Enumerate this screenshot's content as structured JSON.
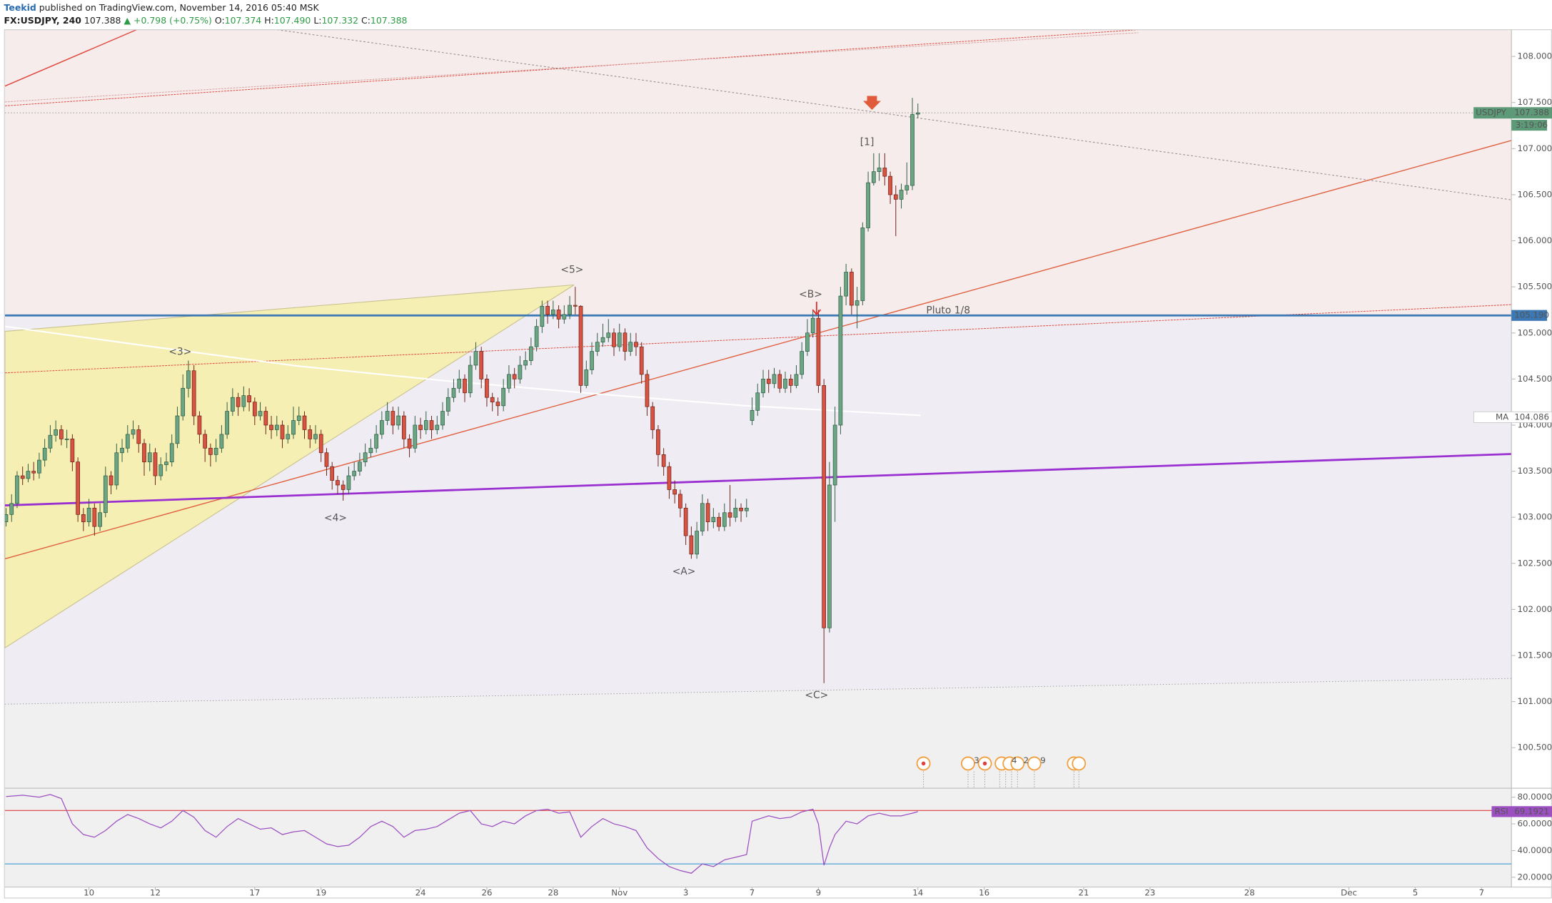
{
  "header": {
    "author": "Teekid",
    "published": "published on TradingView.com, November 14, 2016 05:40 MSK",
    "symbol": "FX:USDJPY, 240",
    "last": "107.388",
    "change": "▲ +0.798 (+0.75%)",
    "o_label": "O:",
    "open": "107.374",
    "h_label": "H:",
    "high": "107.490",
    "l_label": "L:",
    "low": "107.332",
    "c_label": "C:",
    "close": "107.388"
  },
  "chart_data": {
    "type": "candlestick",
    "up_color": "#6ba583",
    "down_color": "#d75442",
    "x": [
      0,
      1,
      2,
      3,
      4,
      5,
      6,
      7,
      8,
      9,
      10,
      11,
      12,
      13,
      14,
      15,
      16,
      17,
      18,
      19,
      20,
      21,
      22,
      23,
      24,
      25,
      26,
      27,
      28,
      29,
      30,
      31,
      32,
      33,
      34,
      35,
      36,
      37,
      38,
      39,
      40,
      41,
      42,
      43,
      44,
      45,
      46,
      47,
      48,
      49,
      50,
      51,
      52,
      53,
      54,
      55,
      56,
      57,
      58,
      59,
      60,
      61,
      62,
      63,
      64,
      65,
      66,
      67,
      68,
      69,
      70,
      71,
      72,
      73,
      74,
      75,
      76,
      77,
      78,
      79,
      80,
      81,
      82,
      83,
      84,
      85,
      86,
      87,
      88,
      89,
      90,
      91,
      92,
      93,
      94,
      95,
      96,
      97,
      98,
      99,
      100,
      101,
      102,
      103,
      104,
      105,
      106,
      107,
      108,
      109,
      110,
      111,
      112,
      113,
      114,
      115,
      116,
      117,
      118,
      119,
      120,
      121,
      122,
      123,
      124,
      125,
      126,
      127,
      128,
      129,
      130,
      131,
      132,
      133,
      134,
      135,
      136,
      137,
      138,
      139,
      140,
      141,
      142,
      143,
      144,
      145,
      146,
      147,
      148,
      149,
      150,
      151,
      152,
      153,
      154,
      155,
      156,
      157,
      158,
      159,
      160,
      161,
      162,
      163,
      164,
      165
    ],
    "open": [
      102.95,
      103.03,
      103.15,
      103.45,
      103.42,
      103.5,
      103.48,
      103.62,
      103.75,
      103.89,
      103.95,
      103.85,
      103.85,
      103.6,
      103.03,
      102.95,
      103.1,
      102.9,
      103.05,
      103.45,
      103.35,
      103.7,
      103.75,
      103.9,
      103.95,
      103.8,
      103.6,
      103.7,
      103.45,
      103.57,
      103.6,
      103.8,
      104.1,
      104.4,
      104.59,
      104.1,
      103.9,
      103.75,
      103.68,
      103.75,
      103.9,
      104.15,
      104.3,
      104.2,
      104.32,
      104.25,
      104.1,
      104.15,
      104.0,
      103.95,
      104.0,
      103.85,
      103.9,
      104.05,
      104.1,
      103.95,
      103.85,
      103.9,
      103.7,
      103.55,
      103.4,
      103.35,
      103.3,
      103.45,
      103.5,
      103.6,
      103.7,
      103.75,
      103.9,
      104.05,
      104.15,
      104.0,
      104.1,
      103.85,
      103.75,
      104.0,
      103.95,
      104.05,
      103.95,
      104.0,
      104.15,
      104.3,
      104.4,
      104.5,
      104.35,
      104.65,
      104.8,
      104.5,
      104.3,
      104.25,
      104.21,
      104.4,
      104.55,
      104.5,
      104.65,
      104.7,
      104.85,
      105.07,
      105.29,
      105.2,
      105.25,
      105.15,
      105.2,
      105.3,
      105.29,
      104.43,
      104.6,
      104.8,
      104.9,
      104.95,
      105.0,
      104.85,
      105.0,
      104.8,
      104.9,
      104.85,
      104.55,
      104.2,
      103.95,
      103.68,
      103.55,
      103.3,
      103.25,
      103.1,
      102.8,
      102.6,
      102.85,
      103.15,
      102.95,
      103.0,
      102.9,
      103.05,
      103.0,
      103.1,
      103.07,
      104.05,
      104.16,
      104.35,
      104.5,
      104.45,
      104.55,
      104.4,
      104.5,
      104.43,
      104.55,
      104.8,
      105.0,
      105.16,
      104.43,
      101.8,
      103.35,
      104.0,
      105.4,
      105.66,
      105.3,
      105.35,
      106.14,
      106.63,
      106.75,
      106.79,
      106.7,
      106.5,
      106.45,
      106.55,
      106.6,
      107.374
    ],
    "high": [
      103.1,
      103.25,
      103.5,
      103.55,
      103.58,
      103.6,
      103.7,
      103.85,
      104.0,
      104.05,
      104.0,
      103.95,
      103.9,
      103.65,
      103.1,
      103.2,
      103.15,
      103.15,
      103.55,
      103.5,
      103.8,
      103.85,
      104.0,
      104.05,
      104.0,
      103.85,
      103.8,
      103.75,
      103.65,
      103.7,
      103.9,
      104.2,
      104.55,
      104.7,
      104.65,
      104.15,
      103.95,
      103.8,
      103.85,
      104.0,
      104.25,
      104.4,
      104.35,
      104.42,
      104.4,
      104.3,
      104.25,
      104.2,
      104.1,
      104.1,
      104.05,
      104.0,
      104.2,
      104.2,
      104.15,
      104.0,
      104.0,
      103.95,
      103.75,
      103.6,
      103.45,
      103.4,
      103.55,
      103.6,
      103.7,
      103.8,
      103.85,
      104.0,
      104.15,
      104.25,
      104.2,
      104.2,
      104.15,
      103.9,
      104.1,
      104.08,
      104.15,
      104.1,
      104.1,
      104.25,
      104.4,
      104.5,
      104.6,
      104.55,
      104.75,
      104.9,
      104.85,
      104.55,
      104.35,
      104.3,
      104.5,
      104.65,
      104.62,
      104.75,
      104.8,
      104.95,
      105.15,
      105.35,
      105.35,
      105.35,
      105.3,
      105.3,
      105.4,
      105.5,
      105.3,
      104.7,
      104.9,
      105.0,
      105.1,
      105.15,
      105.05,
      105.1,
      105.05,
      105.0,
      105.0,
      104.9,
      104.6,
      104.25,
      104.0,
      103.75,
      103.6,
      103.4,
      103.3,
      103.15,
      102.9,
      102.95,
      103.25,
      103.2,
      103.1,
      103.05,
      103.15,
      103.35,
      103.2,
      103.15,
      103.2,
      104.3,
      104.45,
      104.6,
      104.6,
      104.62,
      104.6,
      104.58,
      104.55,
      104.65,
      104.9,
      105.15,
      105.25,
      105.25,
      104.5,
      103.6,
      104.2,
      105.5,
      105.75,
      105.7,
      105.5,
      106.2,
      106.75,
      106.95,
      106.95,
      106.95,
      106.75,
      106.6,
      106.62,
      106.85,
      107.55,
      107.49
    ],
    "low": [
      102.9,
      102.95,
      103.1,
      103.35,
      103.38,
      103.4,
      103.42,
      103.55,
      103.7,
      103.82,
      103.78,
      103.75,
      103.5,
      102.95,
      102.85,
      102.9,
      102.8,
      102.85,
      103.0,
      103.25,
      103.3,
      103.6,
      103.7,
      103.85,
      103.7,
      103.45,
      103.5,
      103.35,
      103.4,
      103.5,
      103.55,
      103.75,
      104.05,
      104.3,
      104.0,
      103.8,
      103.6,
      103.55,
      103.6,
      103.7,
      103.85,
      104.1,
      104.1,
      104.15,
      104.15,
      104.0,
      104.05,
      103.9,
      103.85,
      103.88,
      103.75,
      103.8,
      103.85,
      104.0,
      103.85,
      103.75,
      103.8,
      103.6,
      103.45,
      103.3,
      103.25,
      103.18,
      103.25,
      103.4,
      103.45,
      103.55,
      103.65,
      103.7,
      103.85,
      104.0,
      103.9,
      103.95,
      103.75,
      103.65,
      103.7,
      103.85,
      103.9,
      103.85,
      103.9,
      103.95,
      104.1,
      104.25,
      104.35,
      104.25,
      104.3,
      104.6,
      104.4,
      104.2,
      104.15,
      104.1,
      104.15,
      104.35,
      104.4,
      104.45,
      104.6,
      104.65,
      104.8,
      105.0,
      105.1,
      105.15,
      105.05,
      105.1,
      105.15,
      105.2,
      104.35,
      104.4,
      104.55,
      104.75,
      104.85,
      104.9,
      104.75,
      104.8,
      104.7,
      104.75,
      104.75,
      104.45,
      104.1,
      103.85,
      103.55,
      103.45,
      103.2,
      103.15,
      103.0,
      102.7,
      102.55,
      102.55,
      102.8,
      102.85,
      102.88,
      102.85,
      102.85,
      102.9,
      102.95,
      102.95,
      103.0,
      104.0,
      104.1,
      104.3,
      104.35,
      104.4,
      104.35,
      104.35,
      104.35,
      104.4,
      104.5,
      104.75,
      104.95,
      104.35,
      101.2,
      101.75,
      102.95,
      103.9,
      105.3,
      105.2,
      105.05,
      105.3,
      106.1,
      106.6,
      106.65,
      106.6,
      106.4,
      106.05,
      106.35,
      106.5,
      106.55,
      107.332
    ],
    "close": [
      103.03,
      103.15,
      103.45,
      103.42,
      103.5,
      103.48,
      103.62,
      103.75,
      103.89,
      103.95,
      103.85,
      103.85,
      103.6,
      103.03,
      102.95,
      103.1,
      102.9,
      103.05,
      103.45,
      103.35,
      103.7,
      103.75,
      103.9,
      103.95,
      103.8,
      103.6,
      103.7,
      103.45,
      103.57,
      103.6,
      103.8,
      104.1,
      104.4,
      104.59,
      104.1,
      103.9,
      103.75,
      103.68,
      103.75,
      103.9,
      104.15,
      104.3,
      104.2,
      104.32,
      104.25,
      104.1,
      104.15,
      104.0,
      103.95,
      104.0,
      103.85,
      103.9,
      104.05,
      104.1,
      103.95,
      103.85,
      103.9,
      103.7,
      103.55,
      103.4,
      103.35,
      103.3,
      103.45,
      103.5,
      103.6,
      103.7,
      103.75,
      103.9,
      104.05,
      104.15,
      104.0,
      104.1,
      103.85,
      103.75,
      104.0,
      103.95,
      104.05,
      103.95,
      104.0,
      104.15,
      104.3,
      104.4,
      104.5,
      104.35,
      104.65,
      104.8,
      104.5,
      104.3,
      104.25,
      104.21,
      104.4,
      104.55,
      104.5,
      104.65,
      104.7,
      104.85,
      105.07,
      105.29,
      105.2,
      105.25,
      105.15,
      105.2,
      105.3,
      105.29,
      104.43,
      104.6,
      104.8,
      104.9,
      104.95,
      105.0,
      104.85,
      105.0,
      104.8,
      104.9,
      104.85,
      104.55,
      104.2,
      103.95,
      103.68,
      103.55,
      103.3,
      103.25,
      103.1,
      102.8,
      102.6,
      102.85,
      103.15,
      102.95,
      103.0,
      102.9,
      103.05,
      103.0,
      103.1,
      103.07,
      103.1,
      104.16,
      104.35,
      104.5,
      104.45,
      104.55,
      104.4,
      104.5,
      104.43,
      104.55,
      104.8,
      105.0,
      105.16,
      104.43,
      101.8,
      103.35,
      104.0,
      105.4,
      105.66,
      105.3,
      105.35,
      106.14,
      106.63,
      106.75,
      106.79,
      106.7,
      106.5,
      106.45,
      106.55,
      106.6,
      107.37,
      107.388
    ],
    "xlim": [
      -0.2,
      272.4
    ],
    "xticks": [
      {
        "value": 15,
        "label": "10"
      },
      {
        "value": 27,
        "label": "12"
      },
      {
        "value": 45,
        "label": "17"
      },
      {
        "value": 57,
        "label": "19"
      },
      {
        "value": 75,
        "label": "24"
      },
      {
        "value": 87,
        "label": "26"
      },
      {
        "value": 99,
        "label": "28"
      },
      {
        "value": 111,
        "label": "Nov"
      },
      {
        "value": 123,
        "label": "3"
      },
      {
        "value": 135,
        "label": "7"
      },
      {
        "value": 147,
        "label": "9"
      },
      {
        "value": 165,
        "label": "14"
      },
      {
        "value": 177,
        "label": "16"
      },
      {
        "value": 195,
        "label": "21"
      },
      {
        "value": 207,
        "label": "23"
      },
      {
        "value": 225,
        "label": "28"
      },
      {
        "value": 243,
        "label": "Dec"
      },
      {
        "value": 255,
        "label": "5"
      },
      {
        "value": 267,
        "label": "7"
      }
    ],
    "ylim": [
      100.06,
      108.29
    ],
    "yticks": [
      {
        "value": 100.5,
        "label": "100.500"
      },
      {
        "value": 101,
        "label": "101.000"
      },
      {
        "value": 101.5,
        "label": "101.500"
      },
      {
        "value": 102,
        "label": "102.000"
      },
      {
        "value": 102.5,
        "label": "102.500"
      },
      {
        "value": 103,
        "label": "103.000"
      },
      {
        "value": 103.5,
        "label": "103.500"
      },
      {
        "value": 104,
        "label": "104.000"
      },
      {
        "value": 104.5,
        "label": "104.500"
      },
      {
        "value": 105,
        "label": "105.000"
      },
      {
        "value": 105.5,
        "label": "105.500"
      },
      {
        "value": 106,
        "label": "106.000"
      },
      {
        "value": 106.5,
        "label": "106.500"
      },
      {
        "value": 107,
        "label": "107.000"
      },
      {
        "value": 107.5,
        "label": "107.500"
      },
      {
        "value": 108,
        "label": "108.000"
      }
    ],
    "grid": false,
    "hline": {
      "value": 105.19,
      "label": "105.190",
      "color": "#3b78b4"
    },
    "price_tag": {
      "symbol": "USDJPY",
      "value": 107.388,
      "countdown": "3:19:06",
      "color": "#5d9a78"
    },
    "ma_tag": {
      "name": "MA",
      "value": 104.086
    },
    "annotations": [
      "<5>",
      "<3>",
      "<4>",
      "<A>",
      "<B>",
      "<C>",
      "[1]",
      "Pluto 1/8"
    ],
    "events": [
      "3",
      "4",
      "2",
      "9"
    ],
    "rsi": {
      "type": "line",
      "name": "RSI",
      "color": "#9b4fc1",
      "x": [
        0,
        3,
        6,
        8,
        10,
        12,
        14,
        16,
        18,
        20,
        22,
        24,
        26,
        28,
        30,
        32,
        34,
        36,
        38,
        40,
        42,
        44,
        46,
        48,
        50,
        52,
        54,
        56,
        58,
        60,
        62,
        64,
        66,
        68,
        70,
        72,
        74,
        76,
        78,
        80,
        82,
        84,
        86,
        88,
        90,
        92,
        94,
        96,
        98,
        100,
        102,
        104,
        106,
        108,
        110,
        112,
        114,
        116,
        118,
        120,
        122,
        124,
        126,
        128,
        130,
        132,
        134,
        135,
        138,
        140,
        142,
        144,
        146,
        147,
        148,
        149,
        150,
        152,
        154,
        156,
        158,
        160,
        162,
        164,
        165
      ],
      "values": [
        80.5,
        81.5,
        80,
        82,
        79,
        60,
        52,
        50,
        55,
        62,
        67,
        64,
        60,
        57,
        62,
        70,
        65,
        55,
        50,
        58,
        64,
        60,
        56,
        57,
        52,
        54,
        55,
        50,
        45,
        43,
        44,
        50,
        58,
        62,
        58,
        50,
        55,
        56,
        58,
        63,
        68,
        70,
        60,
        58,
        62,
        60,
        66,
        70,
        71,
        68,
        69,
        50,
        58,
        64,
        60,
        58,
        55,
        42,
        34,
        28,
        25,
        23,
        30,
        28,
        33,
        35,
        37,
        62,
        66,
        64,
        65,
        69,
        71,
        60,
        29,
        42,
        52,
        62,
        60,
        66,
        68,
        66,
        66,
        68,
        69.1921
      ],
      "ylim": [
        12.6,
        86.7
      ],
      "yticks": [
        {
          "value": 20,
          "label": "20.0000"
        },
        {
          "value": 40,
          "label": "40.0000"
        },
        {
          "value": 60,
          "label": "60.0000"
        },
        {
          "value": 80,
          "label": "80.0000"
        }
      ],
      "levels": [
        70,
        30
      ],
      "level_colors": [
        "#e03c3c",
        "#3b9bd6"
      ],
      "tag": {
        "label": "RSI",
        "value": 69.1921
      }
    }
  }
}
